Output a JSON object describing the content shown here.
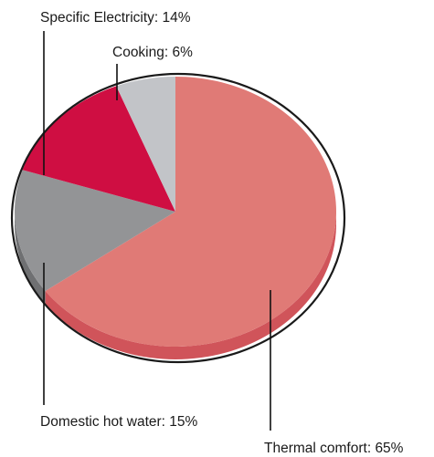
{
  "chart_data": {
    "type": "pie",
    "title": "",
    "slices": [
      {
        "name": "Thermal comfort",
        "value": 65,
        "label": "Thermal comfort: 65%",
        "color": "#e07a76",
        "side_color": "#d0545a"
      },
      {
        "name": "Domestic hot water",
        "value": 15,
        "label": "Domestic hot water: 15%",
        "color": "#939496",
        "side_color": "#6f7072"
      },
      {
        "name": "Specific Electricity",
        "value": 14,
        "label": "Specific Electricity: 14%",
        "color": "#cf0e42",
        "side_color": "#9e0a32"
      },
      {
        "name": "Cooking",
        "value": 6,
        "label": "Cooking: 6%",
        "color": "#c2c4c8",
        "side_color": "#9a9ca0"
      }
    ]
  }
}
